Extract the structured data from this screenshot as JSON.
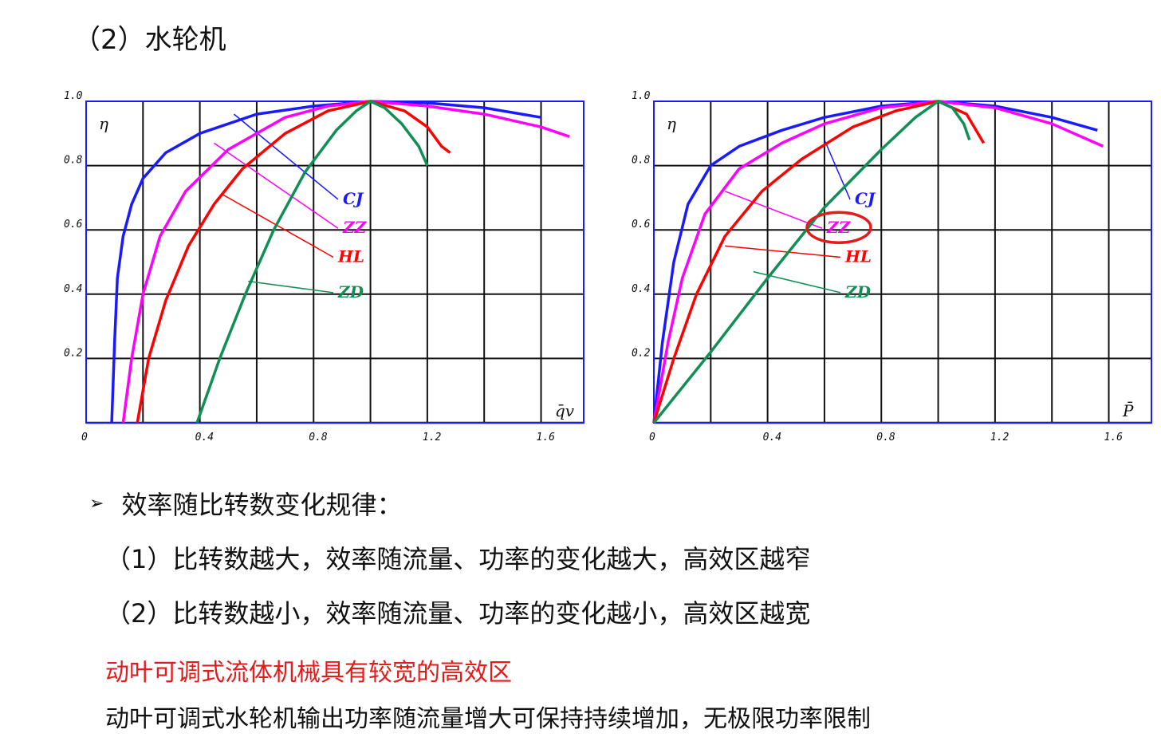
{
  "heading": "（2）水轮机",
  "charts": [
    {
      "id": "left",
      "y_axis_label": "η",
      "x_axis_label": "q̄v",
      "x_ticks": [
        "0",
        "0.4",
        "0.8",
        "1.2",
        "1.6"
      ],
      "y_ticks": [
        "0.2",
        "0.4",
        "0.6",
        "0.8",
        "1.0"
      ],
      "series_labels": [
        "CJ",
        "ZZ",
        "HL",
        "ZD"
      ]
    },
    {
      "id": "right",
      "y_axis_label": "η",
      "x_axis_label": "P̄",
      "x_ticks": [
        "0",
        "0.4",
        "0.8",
        "1.2",
        "1.6"
      ],
      "y_ticks": [
        "0.2",
        "0.4",
        "0.6",
        "0.8",
        "1.0"
      ],
      "series_labels": [
        "CJ",
        "ZZ",
        "HL",
        "ZD"
      ]
    }
  ],
  "chart_data": [
    {
      "type": "line",
      "xlabel": "q̄v",
      "ylabel": "η",
      "xlim": [
        0,
        1.75
      ],
      "ylim": [
        0,
        1.0
      ],
      "grid": true,
      "series": [
        {
          "name": "CJ",
          "color": "#1a1aff",
          "points": [
            [
              0.09,
              0
            ],
            [
              0.1,
              0.25
            ],
            [
              0.11,
              0.45
            ],
            [
              0.13,
              0.58
            ],
            [
              0.16,
              0.68
            ],
            [
              0.2,
              0.76
            ],
            [
              0.28,
              0.84
            ],
            [
              0.4,
              0.9
            ],
            [
              0.6,
              0.96
            ],
            [
              0.8,
              0.985
            ],
            [
              1.0,
              1.0
            ],
            [
              1.2,
              0.995
            ],
            [
              1.4,
              0.98
            ],
            [
              1.6,
              0.95
            ]
          ]
        },
        {
          "name": "ZZ",
          "color": "#ff00ff",
          "points": [
            [
              0.13,
              0
            ],
            [
              0.16,
              0.2
            ],
            [
              0.2,
              0.4
            ],
            [
              0.26,
              0.58
            ],
            [
              0.35,
              0.72
            ],
            [
              0.5,
              0.85
            ],
            [
              0.7,
              0.95
            ],
            [
              0.85,
              0.985
            ],
            [
              1.0,
              1.0
            ],
            [
              1.2,
              0.985
            ],
            [
              1.4,
              0.96
            ],
            [
              1.6,
              0.92
            ],
            [
              1.7,
              0.89
            ]
          ]
        },
        {
          "name": "HL",
          "color": "#ff0000",
          "points": [
            [
              0.18,
              0
            ],
            [
              0.22,
              0.2
            ],
            [
              0.28,
              0.38
            ],
            [
              0.36,
              0.55
            ],
            [
              0.45,
              0.68
            ],
            [
              0.55,
              0.79
            ],
            [
              0.7,
              0.9
            ],
            [
              0.85,
              0.97
            ],
            [
              1.0,
              1.0
            ],
            [
              1.12,
              0.97
            ],
            [
              1.2,
              0.92
            ],
            [
              1.25,
              0.86
            ],
            [
              1.28,
              0.84
            ]
          ]
        },
        {
          "name": "ZD",
          "color": "#0f8f54",
          "points": [
            [
              0.39,
              0
            ],
            [
              0.47,
              0.2
            ],
            [
              0.56,
              0.4
            ],
            [
              0.66,
              0.6
            ],
            [
              0.77,
              0.78
            ],
            [
              0.88,
              0.91
            ],
            [
              0.95,
              0.97
            ],
            [
              1.0,
              1.0
            ],
            [
              1.05,
              0.98
            ],
            [
              1.11,
              0.93
            ],
            [
              1.17,
              0.86
            ],
            [
              1.2,
              0.8
            ]
          ]
        }
      ]
    },
    {
      "type": "line",
      "xlabel": "P̄",
      "ylabel": "η",
      "xlim": [
        0,
        1.75
      ],
      "ylim": [
        0,
        1.0
      ],
      "grid": true,
      "series": [
        {
          "name": "CJ",
          "color": "#1a1aff",
          "points": [
            [
              0,
              0
            ],
            [
              0.03,
              0.25
            ],
            [
              0.07,
              0.5
            ],
            [
              0.12,
              0.68
            ],
            [
              0.2,
              0.8
            ],
            [
              0.3,
              0.86
            ],
            [
              0.45,
              0.91
            ],
            [
              0.6,
              0.95
            ],
            [
              0.8,
              0.985
            ],
            [
              1.0,
              1.0
            ],
            [
              1.2,
              0.985
            ],
            [
              1.4,
              0.95
            ],
            [
              1.56,
              0.91
            ]
          ]
        },
        {
          "name": "ZZ",
          "color": "#ff00ff",
          "points": [
            [
              0,
              0
            ],
            [
              0.05,
              0.25
            ],
            [
              0.1,
              0.45
            ],
            [
              0.18,
              0.65
            ],
            [
              0.3,
              0.79
            ],
            [
              0.45,
              0.87
            ],
            [
              0.6,
              0.93
            ],
            [
              0.8,
              0.98
            ],
            [
              1.0,
              1.0
            ],
            [
              1.2,
              0.98
            ],
            [
              1.4,
              0.93
            ],
            [
              1.58,
              0.86
            ]
          ]
        },
        {
          "name": "HL",
          "color": "#ff0000",
          "points": [
            [
              0,
              0
            ],
            [
              0.07,
              0.2
            ],
            [
              0.15,
              0.4
            ],
            [
              0.25,
              0.58
            ],
            [
              0.38,
              0.72
            ],
            [
              0.52,
              0.82
            ],
            [
              0.7,
              0.92
            ],
            [
              0.85,
              0.97
            ],
            [
              1.0,
              1.0
            ],
            [
              1.1,
              0.96
            ],
            [
              1.16,
              0.87
            ]
          ]
        },
        {
          "name": "ZD",
          "color": "#0f8f54",
          "points": [
            [
              0,
              0
            ],
            [
              0.2,
              0.22
            ],
            [
              0.4,
              0.45
            ],
            [
              0.6,
              0.67
            ],
            [
              0.8,
              0.85
            ],
            [
              0.92,
              0.95
            ],
            [
              1.0,
              1.0
            ],
            [
              1.05,
              0.98
            ],
            [
              1.09,
              0.93
            ],
            [
              1.11,
              0.88
            ]
          ]
        }
      ]
    }
  ],
  "bullet": {
    "arrow": "➢",
    "title": "效率随比转数变化规律："
  },
  "items": [
    "（1）比转数越大，效率随流量、功率的变化越大，高效区越窄",
    "（2）比转数越小，效率随流量、功率的变化越小，高效区越宽"
  ],
  "note_red": "动叶可调式流体机械具有较宽的高效区",
  "note_black": "动叶可调式水轮机输出功率随流量增大可保持持续增加，无极限功率限制",
  "colors": {
    "grid": "#111111",
    "frame": "#1a1aff",
    "highlight_circle": "#e31b1b",
    "note_red": "#e31b1b"
  }
}
